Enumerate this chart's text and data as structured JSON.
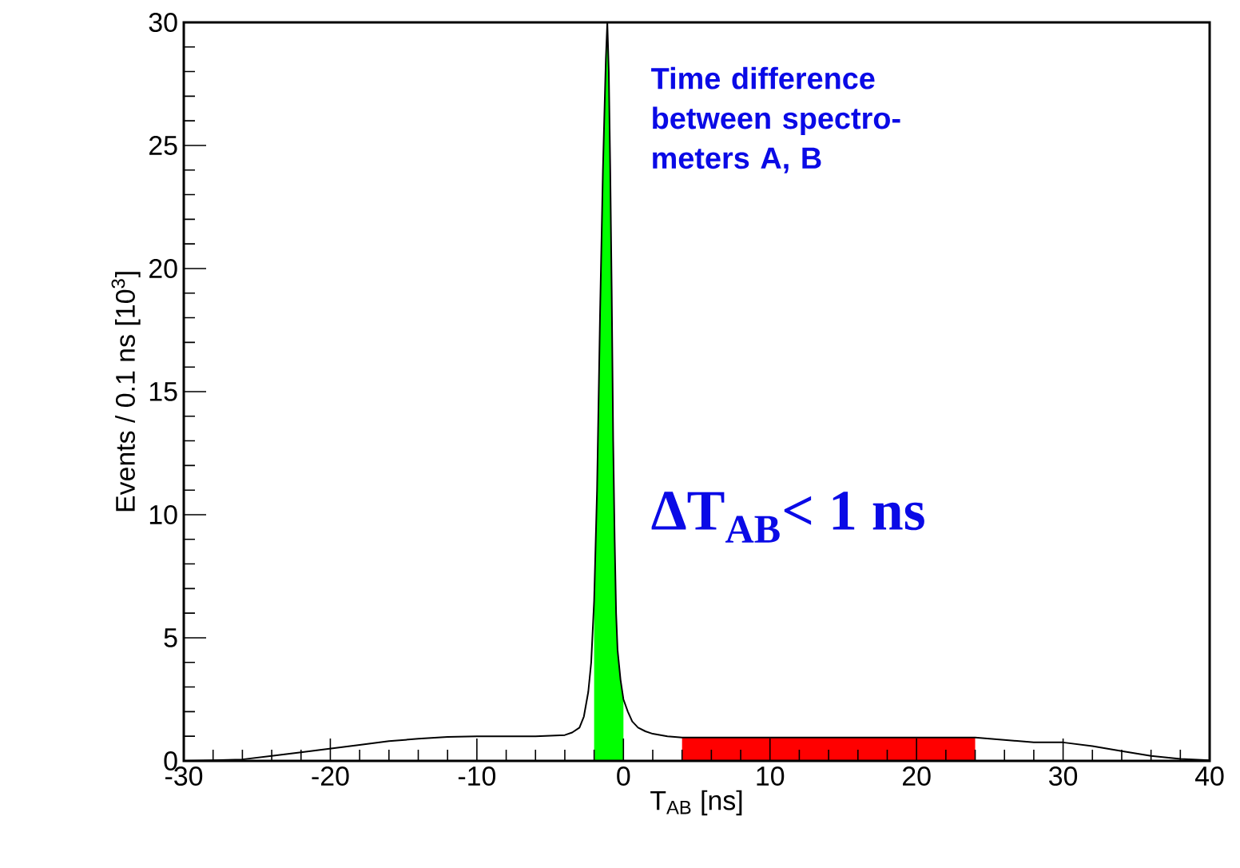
{
  "chart_data": {
    "type": "line",
    "xlabel": "T$_{AB}$  [ns]",
    "ylabel": "Events / 0.1 ns  [10$^{3}$]",
    "xlim": [
      -30,
      40
    ],
    "xticks": [
      -30,
      -20,
      -10,
      0,
      10,
      20,
      30,
      40
    ],
    "ylim": [
      0,
      30
    ],
    "yticks": [
      0,
      5,
      10,
      15,
      20,
      25,
      30
    ],
    "series": [
      {
        "color": "#000000",
        "x": [
          -30,
          -28,
          -26,
          -24,
          -22,
          -20,
          -18,
          -16,
          -14,
          -12,
          -10,
          -8,
          -6,
          -5,
          -4,
          -3.5,
          -3,
          -2.7,
          -2.4,
          -2.2,
          -2.0,
          -1.8,
          -1.6,
          -1.4,
          -1.2,
          -1.1,
          -1.0,
          -0.9,
          -0.8,
          -0.7,
          -0.6,
          -0.5,
          -0.4,
          -0.2,
          0,
          0.3,
          0.6,
          1,
          1.5,
          2,
          3,
          4,
          6,
          10,
          14,
          18,
          22,
          24,
          26,
          28,
          30,
          32,
          34,
          36,
          38,
          40
        ],
        "values": [
          0,
          0.02,
          0.06,
          0.2,
          0.35,
          0.5,
          0.65,
          0.8,
          0.9,
          0.97,
          1.0,
          1.0,
          1.0,
          1.02,
          1.05,
          1.15,
          1.35,
          1.8,
          2.8,
          4.0,
          6.5,
          11,
          18,
          24,
          28.5,
          30,
          28,
          24,
          19,
          13,
          9,
          6,
          4.5,
          3.3,
          2.5,
          2.0,
          1.6,
          1.35,
          1.2,
          1.1,
          1.0,
          0.95,
          0.95,
          0.95,
          0.95,
          0.95,
          0.95,
          0.95,
          0.85,
          0.75,
          0.75,
          0.6,
          0.4,
          0.2,
          0.08,
          0.02
        ]
      },
      {
        "type": "area",
        "color": "#00ff00",
        "x": [
          -2.0,
          -1.8,
          -1.6,
          -1.4,
          -1.2,
          -1.1,
          -1.0,
          -0.9,
          -0.8,
          -0.7,
          -0.6,
          -0.5,
          -0.4,
          -0.2,
          0
        ],
        "values": [
          6.5,
          11,
          18,
          24,
          28.5,
          30,
          28,
          24,
          19,
          13,
          9,
          6,
          4.5,
          3.3,
          2.5
        ]
      },
      {
        "type": "area",
        "color": "#ff0000",
        "x": [
          4,
          6,
          10,
          14,
          18,
          22,
          24
        ],
        "values": [
          0.95,
          0.95,
          0.95,
          0.95,
          0.95,
          0.95,
          0.95
        ]
      }
    ],
    "annotations": [
      "Time difference between spectro-meters  A, B",
      "**ΔT$_{AB}$< 1 ns**"
    ]
  }
}
